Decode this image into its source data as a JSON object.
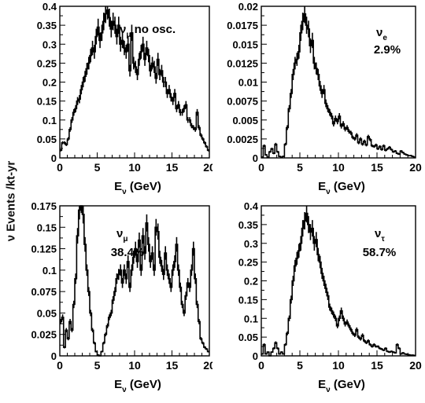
{
  "figure": {
    "ylabel_prefix": "ν",
    "ylabel_rest": " Events /kt-yr"
  },
  "chart_data": [
    {
      "type": "histogram",
      "label_main": "ν",
      "label_sub": "μ",
      "label_suffix": " no osc.",
      "percent": "",
      "xlabel_main": "E",
      "xlabel_sub": "ν",
      "xlabel_rest": " (GeV)",
      "xlim": [
        0,
        20
      ],
      "ylim": [
        0,
        0.4
      ],
      "xticks": [
        0,
        5,
        10,
        15,
        20
      ],
      "yticks": [
        0,
        0.05,
        0.1,
        0.15,
        0.2,
        0.25,
        0.3,
        0.35,
        0.4
      ],
      "ytick_labels": [
        "0",
        "0.05",
        "0.1",
        "0.15",
        "0.2",
        "0.25",
        "0.3",
        "0.35",
        "0.4"
      ],
      "grid": false,
      "bin_width": 0.25,
      "values": [
        0.02,
        0.04,
        0.04,
        0.035,
        0.05,
        0.075,
        0.1,
        0.12,
        0.13,
        0.15,
        0.155,
        0.18,
        0.2,
        0.215,
        0.235,
        0.25,
        0.27,
        0.29,
        0.28,
        0.32,
        0.345,
        0.31,
        0.33,
        0.36,
        0.38,
        0.39,
        0.37,
        0.34,
        0.36,
        0.35,
        0.32,
        0.35,
        0.3,
        0.31,
        0.29,
        0.28,
        0.3,
        0.23,
        0.33,
        0.25,
        0.24,
        0.22,
        0.26,
        0.28,
        0.3,
        0.26,
        0.29,
        0.27,
        0.23,
        0.25,
        0.24,
        0.21,
        0.26,
        0.22,
        0.23,
        0.2,
        0.2,
        0.17,
        0.18,
        0.16,
        0.15,
        0.17,
        0.13,
        0.14,
        0.12,
        0.12,
        0.13,
        0.14,
        0.1,
        0.1,
        0.085,
        0.08,
        0.075,
        0.12,
        0.08,
        0.06,
        0.05,
        0.04,
        0.03,
        0.02
      ]
    },
    {
      "type": "histogram",
      "label_main": "ν",
      "label_sub": "e",
      "label_suffix": "",
      "percent": "2.9%",
      "xlabel_main": "E",
      "xlabel_sub": "ν",
      "xlabel_rest": " (GeV)",
      "xlim": [
        0,
        20
      ],
      "ylim": [
        0,
        0.02
      ],
      "xticks": [
        0,
        5,
        10,
        15,
        20
      ],
      "yticks": [
        0,
        0.0025,
        0.005,
        0.0075,
        0.01,
        0.0125,
        0.015,
        0.0175,
        0.02
      ],
      "ytick_labels": [
        "0",
        "0.0025",
        "0.005",
        "0.0075",
        "0.01",
        "0.0125",
        "0.015",
        "0.0175",
        "0.02"
      ],
      "grid": false,
      "bin_width": 0.25,
      "values": [
        0.0001,
        0.0016,
        0.0004,
        0.0001,
        0.0008,
        0.0012,
        0.0006,
        0.0018,
        0.0008,
        0.0002,
        0.0001,
        0.0002,
        0.0018,
        0.004,
        0.0065,
        0.0085,
        0.011,
        0.0125,
        0.013,
        0.014,
        0.0165,
        0.018,
        0.019,
        0.0175,
        0.017,
        0.0148,
        0.0155,
        0.0125,
        0.0118,
        0.011,
        0.0095,
        0.0085,
        0.009,
        0.0072,
        0.0065,
        0.006,
        0.0055,
        0.0045,
        0.0052,
        0.0048,
        0.0055,
        0.0042,
        0.0045,
        0.0038,
        0.004,
        0.0035,
        0.0033,
        0.0027,
        0.0025,
        0.003,
        0.002,
        0.0025,
        0.0018,
        0.0022,
        0.0017,
        0.0028,
        0.0024,
        0.0016,
        0.0015,
        0.0017,
        0.0012,
        0.0015,
        0.0011,
        0.0016,
        0.001,
        0.0012,
        0.0014,
        0.0011,
        0.0008,
        0.0009,
        0.0006,
        0.0005,
        0.0009,
        0.0007,
        0.0005,
        0.0004,
        0.0003,
        0.0003,
        0.0002,
        0.0001
      ]
    },
    {
      "type": "histogram",
      "label_main": "ν",
      "label_sub": "μ",
      "label_suffix": "",
      "percent": "38.4%",
      "xlabel_main": "E",
      "xlabel_sub": "ν",
      "xlabel_rest": " (GeV)",
      "xlim": [
        0,
        20
      ],
      "ylim": [
        0,
        0.175
      ],
      "xticks": [
        0,
        5,
        10,
        15,
        20
      ],
      "yticks": [
        0,
        0.025,
        0.05,
        0.075,
        0.1,
        0.125,
        0.15,
        0.175
      ],
      "ytick_labels": [
        "0",
        "0.025",
        "0.05",
        "0.075",
        "0.1",
        "0.125",
        "0.15",
        "0.175"
      ],
      "grid": false,
      "bin_width": 0.25,
      "values": [
        0.04,
        0.045,
        0.01,
        0.03,
        0.02,
        0.04,
        0.03,
        0.06,
        0.09,
        0.14,
        0.17,
        0.178,
        0.165,
        0.13,
        0.1,
        0.075,
        0.05,
        0.03,
        0.015,
        0.005,
        0.001,
        0.0,
        0.005,
        0.015,
        0.025,
        0.035,
        0.045,
        0.05,
        0.065,
        0.075,
        0.09,
        0.095,
        0.1,
        0.085,
        0.1,
        0.09,
        0.11,
        0.08,
        0.1,
        0.115,
        0.125,
        0.11,
        0.135,
        0.1,
        0.14,
        0.12,
        0.155,
        0.13,
        0.11,
        0.12,
        0.1,
        0.15,
        0.145,
        0.115,
        0.105,
        0.095,
        0.12,
        0.1,
        0.09,
        0.08,
        0.1,
        0.11,
        0.13,
        0.1,
        0.08,
        0.06,
        0.05,
        0.07,
        0.085,
        0.08,
        0.1,
        0.125,
        0.09,
        0.06,
        0.04,
        0.02,
        0.015,
        0.01,
        0.008,
        0.005
      ]
    },
    {
      "type": "histogram",
      "label_main": "ν",
      "label_sub": "τ",
      "label_suffix": "",
      "percent": "58.7%",
      "xlabel_main": "E",
      "xlabel_sub": "ν",
      "xlabel_rest": " (GeV)",
      "xlim": [
        0,
        20
      ],
      "ylim": [
        0,
        0.4
      ],
      "xticks": [
        0,
        5,
        10,
        15,
        20
      ],
      "yticks": [
        0,
        0.05,
        0.1,
        0.15,
        0.2,
        0.25,
        0.3,
        0.35,
        0.4
      ],
      "ytick_labels": [
        "0",
        "0.05",
        "0.1",
        "0.15",
        "0.2",
        "0.25",
        "0.3",
        "0.35",
        "0.4"
      ],
      "grid": false,
      "bin_width": 0.25,
      "values": [
        0.005,
        0.03,
        0.005,
        0.01,
        0.0,
        0.01,
        0.02,
        0.035,
        0.02,
        0.005,
        0.01,
        0.005,
        0.03,
        0.06,
        0.1,
        0.15,
        0.2,
        0.24,
        0.26,
        0.28,
        0.3,
        0.34,
        0.36,
        0.38,
        0.35,
        0.33,
        0.34,
        0.3,
        0.31,
        0.27,
        0.25,
        0.22,
        0.2,
        0.18,
        0.16,
        0.13,
        0.12,
        0.11,
        0.1,
        0.08,
        0.1,
        0.12,
        0.1,
        0.085,
        0.09,
        0.08,
        0.07,
        0.06,
        0.055,
        0.07,
        0.05,
        0.045,
        0.055,
        0.04,
        0.035,
        0.04,
        0.03,
        0.025,
        0.03,
        0.025,
        0.025,
        0.02,
        0.018,
        0.015,
        0.02,
        0.012,
        0.01,
        0.012,
        0.01,
        0.008,
        0.03,
        0.02,
        0.005,
        0.008,
        0.005,
        0.004,
        0.003,
        0.002,
        0.002,
        0.001
      ]
    }
  ]
}
